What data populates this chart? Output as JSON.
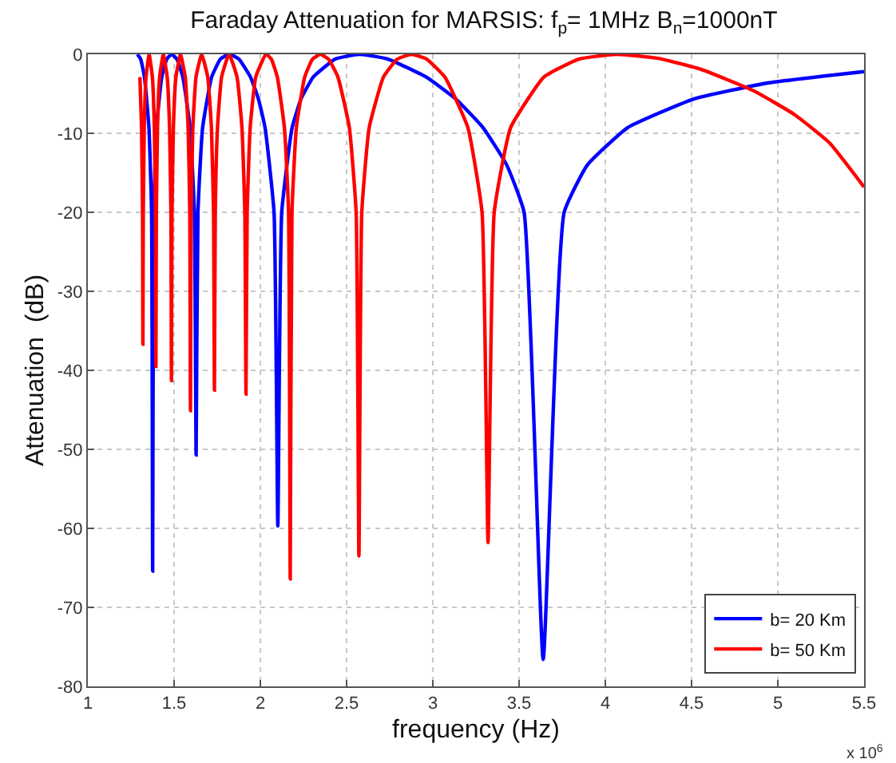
{
  "chart_data": {
    "type": "line",
    "title": "Faraday Attenuation for MARSIS: f$_{p}$= 1MHz B$_{n}$=1000nT",
    "xlabel": "frequency (Hz)",
    "ylabel": "Attenuation  (dB)",
    "annotations": [
      "x 10$^{6}$"
    ],
    "xlim": [
      1,
      5.5
    ],
    "xticks": [
      1,
      1.5,
      2,
      2.5,
      3,
      3.5,
      4,
      4.5,
      5,
      5.5
    ],
    "ylim": [
      -80,
      0
    ],
    "yticks": [
      -80,
      -70,
      -60,
      -50,
      -40,
      -30,
      -20,
      -10,
      0
    ],
    "grid": true,
    "legend": "bottom right",
    "series": [
      {
        "name": "b= 20 Km",
        "color": "#0000ff",
        "x": [
          1.287,
          1.3063,
          1.3282,
          1.3543,
          1.3695,
          1.3757,
          1.382,
          1.3981,
          1.4286,
          1.4575,
          1.4859,
          1.5161,
          1.5507,
          1.5927,
          1.6175,
          1.6278,
          1.6382,
          1.6653,
          1.7176,
          1.7685,
          1.8199,
          1.8761,
          1.943,
          1.9886,
          2.0275,
          2.0795,
          2.1014,
          2.1241,
          2.1841,
          2.236,
          2.3063,
          2.4341,
          2.5737,
          2.7405,
          2.9627,
          3.1325,
          3.2915,
          3.4281,
          3.5292,
          3.6398,
          3.7615,
          3.8963,
          4.1287,
          4.515,
          4.948,
          5.5
        ],
        "values": [
          0,
          -0.61,
          -2.89,
          -9.3,
          -20.0,
          -65.4,
          -20.0,
          -9.3,
          -2.89,
          -0.61,
          0,
          -0.61,
          -2.89,
          -9.3,
          -20.0,
          -50.7,
          -20.0,
          -9.3,
          -2.89,
          -0.61,
          0,
          -0.61,
          -2.89,
          -5.64,
          -9.3,
          -20.0,
          -59.7,
          -20.0,
          -9.3,
          -5.64,
          -2.89,
          -0.61,
          0,
          -0.61,
          -2.89,
          -5.64,
          -9.3,
          -14.0,
          -20.0,
          -76.6,
          -20.0,
          -14.0,
          -9.3,
          -5.64,
          -3.61,
          -2.2
        ]
      },
      {
        "name": "b= 50 Km",
        "color": "#ff0000",
        "x": [
          1.3019,
          1.3115,
          1.317,
          1.3192,
          1.3214,
          1.327,
          1.3372,
          1.3554,
          1.3742,
          1.3856,
          1.392,
          1.3946,
          1.3972,
          1.4038,
          1.416,
          1.4376,
          1.4601,
          1.4738,
          1.4816,
          1.4847,
          1.4879,
          1.4958,
          1.5105,
          1.5368,
          1.5646,
          1.5814,
          1.591,
          1.5949,
          1.5988,
          1.6087,
          1.6271,
          1.66,
          1.6951,
          1.7165,
          1.7288,
          1.7338,
          1.7388,
          1.7516,
          1.7753,
          1.8184,
          1.8649,
          1.8935,
          1.9101,
          1.9168,
          1.9236,
          1.941,
          1.9733,
          2.0331,
          2.0637,
          2.0984,
          2.1396,
          2.1636,
          2.1734,
          2.1833,
          2.2088,
          2.257,
          2.3027,
          2.3475,
          2.3951,
          2.4499,
          2.5162,
          2.5554,
          2.5716,
          2.5882,
          2.6309,
          2.7135,
          2.7939,
          2.8752,
          2.9641,
          3.0697,
          3.2033,
          3.2854,
          3.3201,
          3.3559,
          3.4507,
          3.6438,
          3.8457,
          4.0661,
          4.307,
          4.5581,
          4.8589,
          5.0961,
          5.2987,
          5.5
        ],
        "values": [
          -2.89,
          -9.3,
          -20.0,
          -36.7,
          -20.0,
          -9.3,
          -2.89,
          0,
          -2.89,
          -9.3,
          -20.0,
          -39.5,
          -20.0,
          -9.3,
          -2.89,
          0,
          -2.89,
          -9.3,
          -20.0,
          -41.3,
          -20.0,
          -9.3,
          -2.89,
          0,
          -2.89,
          -9.3,
          -20.0,
          -45.1,
          -20.0,
          -9.3,
          -2.89,
          0,
          -2.89,
          -9.3,
          -20.0,
          -42.5,
          -20.0,
          -9.3,
          -2.89,
          0,
          -2.89,
          -9.3,
          -20.0,
          -43.0,
          -20.0,
          -9.3,
          -2.89,
          0,
          -0.61,
          -2.89,
          -9.3,
          -20.0,
          -66.4,
          -20.0,
          -9.3,
          -2.89,
          -0.61,
          0,
          -0.61,
          -2.89,
          -9.3,
          -20.0,
          -63.5,
          -20.0,
          -9.3,
          -2.89,
          -0.61,
          0,
          -0.61,
          -2.89,
          -9.3,
          -20.0,
          -61.8,
          -20.0,
          -9.3,
          -2.89,
          -0.61,
          0,
          -0.52,
          -1.93,
          -4.61,
          -7.62,
          -11.19,
          -16.8
        ]
      }
    ]
  }
}
